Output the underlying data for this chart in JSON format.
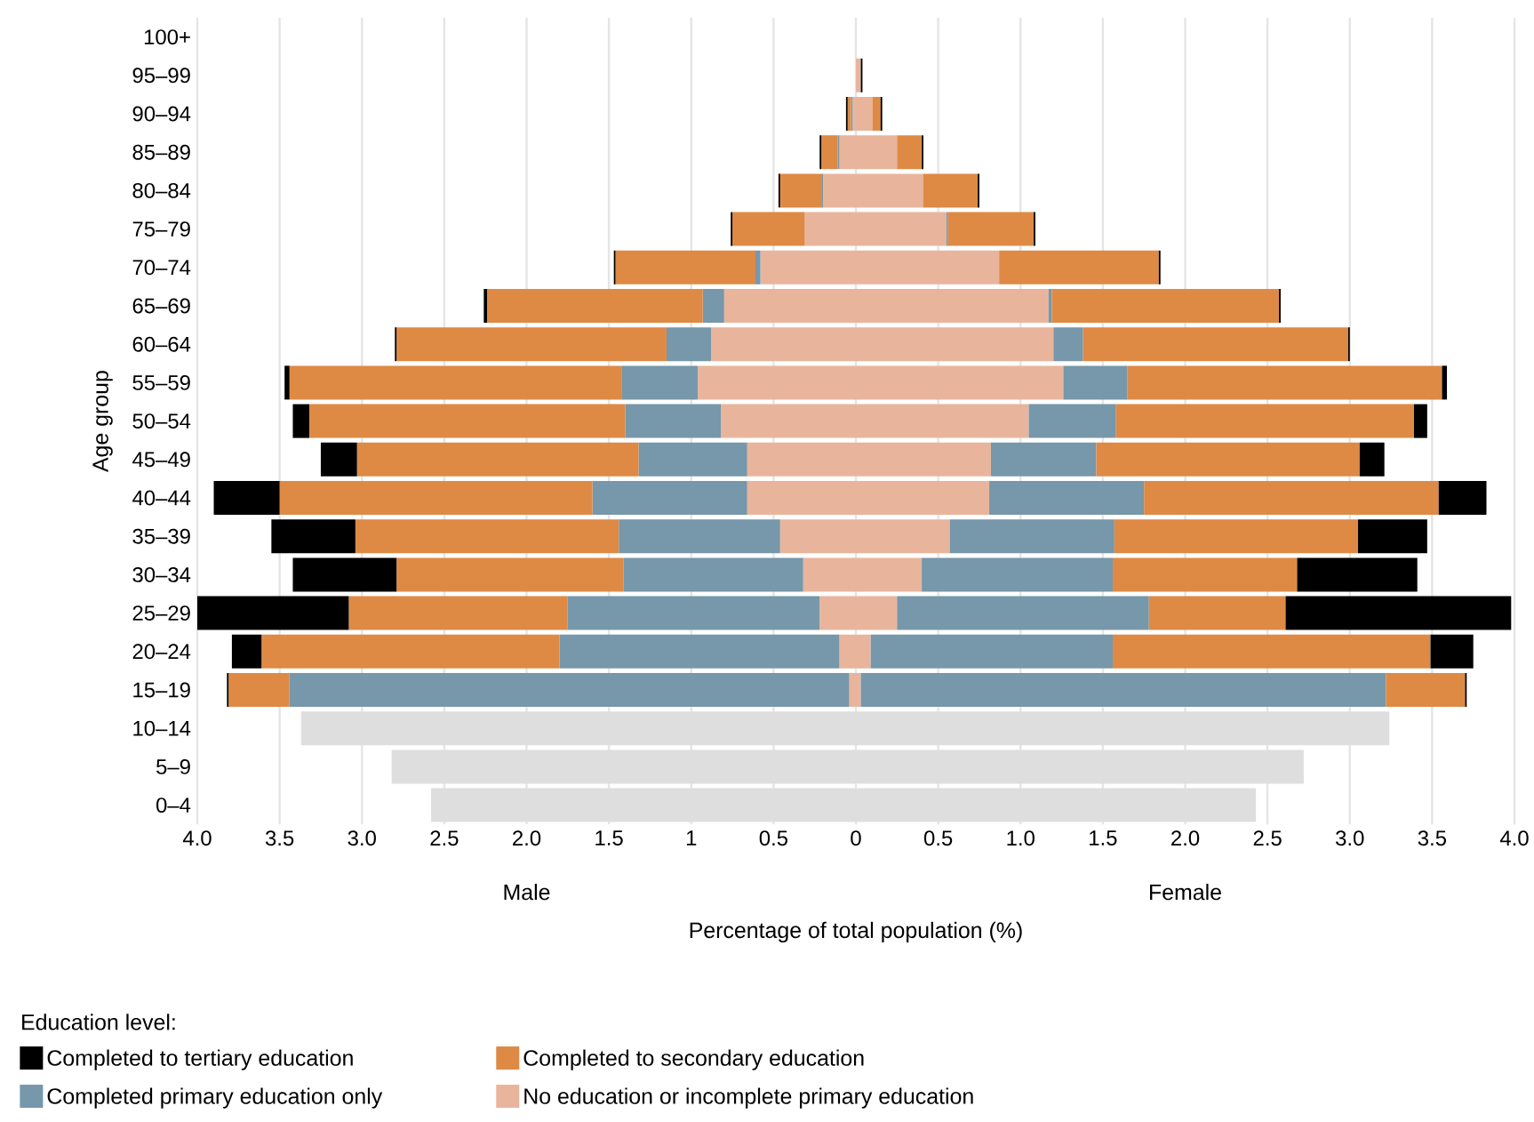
{
  "chart_data": {
    "type": "bar",
    "orientation": "horizontal",
    "stacked": true,
    "ylabel": "Age group",
    "xlabel": "Percentage of total population (%)",
    "legend_title": "Education level:",
    "annotations": [
      "Male",
      "Female"
    ],
    "categories": [
      "100+",
      "95–99",
      "90–94",
      "85–89",
      "80–84",
      "75–79",
      "70–74",
      "65–69",
      "60–64",
      "55–59",
      "50–54",
      "45–49",
      "40–44",
      "35–39",
      "30–34",
      "25–29",
      "20–24",
      "15–19",
      "10–14",
      "5–9",
      "0–4"
    ],
    "series": [
      {
        "color": "#dedede",
        "values": [
          null,
          null,
          null,
          null,
          null,
          null,
          null,
          null,
          null,
          null,
          null,
          null,
          null,
          null,
          null,
          null,
          null,
          null,
          -3.37,
          -2.82,
          -2.58
        ]
      },
      {
        "color": "#e8b59c",
        "values": [
          null,
          null,
          -0.02,
          -0.1,
          -0.2,
          -0.31,
          -0.58,
          -0.8,
          -0.88,
          -0.96,
          -0.82,
          -0.66,
          -0.66,
          -0.46,
          -0.32,
          -0.22,
          -0.1,
          -0.04,
          null,
          null,
          null
        ]
      },
      {
        "color": "#7797aa",
        "values": [
          null,
          null,
          -0.01,
          -0.01,
          -0.01,
          null,
          -0.03,
          -0.13,
          -0.27,
          -0.46,
          -0.58,
          -0.66,
          -0.94,
          -0.98,
          -1.09,
          -1.53,
          -1.7,
          -3.4,
          null,
          null,
          null
        ]
      },
      {
        "color": "#de8a45",
        "values": [
          null,
          null,
          -0.02,
          -0.1,
          -0.25,
          -0.44,
          -0.85,
          -1.31,
          -1.64,
          -2.02,
          -1.92,
          -1.71,
          -1.9,
          -1.6,
          -1.38,
          -1.33,
          -1.81,
          -0.37,
          null,
          null,
          null
        ]
      },
      {
        "color": "#000000",
        "values": [
          null,
          null,
          -0.01,
          -0.01,
          -0.01,
          -0.01,
          -0.01,
          -0.02,
          -0.01,
          -0.03,
          -0.1,
          -0.22,
          -0.4,
          -0.51,
          -0.63,
          -0.92,
          -0.18,
          -0.01,
          null,
          null,
          null
        ]
      },
      {
        "color": "#dedede",
        "values": [
          null,
          null,
          null,
          null,
          null,
          null,
          null,
          null,
          null,
          null,
          null,
          null,
          null,
          null,
          null,
          null,
          null,
          null,
          3.24,
          2.72,
          2.43
        ]
      },
      {
        "name": "No education or incomplete primary education",
        "color": "#e8b59c",
        "values": [
          null,
          0.03,
          0.1,
          0.25,
          0.41,
          0.55,
          0.87,
          1.17,
          1.2,
          1.26,
          1.05,
          0.82,
          0.81,
          0.57,
          0.4,
          0.25,
          0.09,
          0.03,
          null,
          null,
          null
        ]
      },
      {
        "name": "Completed primary education only",
        "color": "#7797aa",
        "values": [
          null,
          null,
          null,
          null,
          null,
          0.01,
          null,
          0.02,
          0.18,
          0.39,
          0.53,
          0.64,
          0.94,
          1.0,
          1.16,
          1.53,
          1.47,
          3.19,
          null,
          null,
          null
        ]
      },
      {
        "name": "Completed to secondary education",
        "color": "#de8a45",
        "values": [
          null,
          null,
          0.05,
          0.15,
          0.33,
          0.52,
          0.97,
          1.38,
          1.61,
          1.91,
          1.81,
          1.6,
          1.79,
          1.48,
          1.12,
          0.83,
          1.93,
          0.48,
          null,
          null,
          null
        ]
      },
      {
        "name": "Completed to tertiary education",
        "color": "#000000",
        "values": [
          null,
          0.01,
          0.01,
          0.01,
          0.01,
          0.01,
          0.01,
          0.01,
          0.01,
          0.03,
          0.08,
          0.15,
          0.29,
          0.42,
          0.73,
          1.37,
          0.26,
          0.01,
          null,
          null,
          null
        ]
      }
    ],
    "xlim": [
      -4,
      4
    ],
    "xticks": [
      {
        "value": -4,
        "label": "4.0"
      },
      {
        "value": -3.5,
        "label": "3.5"
      },
      {
        "value": -3,
        "label": "3.0"
      },
      {
        "value": -2.5,
        "label": "2.5"
      },
      {
        "value": -2,
        "label": "2.0"
      },
      {
        "value": -1.5,
        "label": "1.5"
      },
      {
        "value": -1,
        "label": "1"
      },
      {
        "value": -0.5,
        "label": "0.5"
      },
      0,
      0.5,
      {
        "value": 1,
        "label": "1.0"
      },
      1.5,
      {
        "value": 2,
        "label": "2.0"
      },
      2.5,
      {
        "value": 3,
        "label": "3.0"
      },
      3.5,
      {
        "value": 4,
        "label": "4.0"
      }
    ],
    "grid": "x",
    "legend": "bottom"
  }
}
